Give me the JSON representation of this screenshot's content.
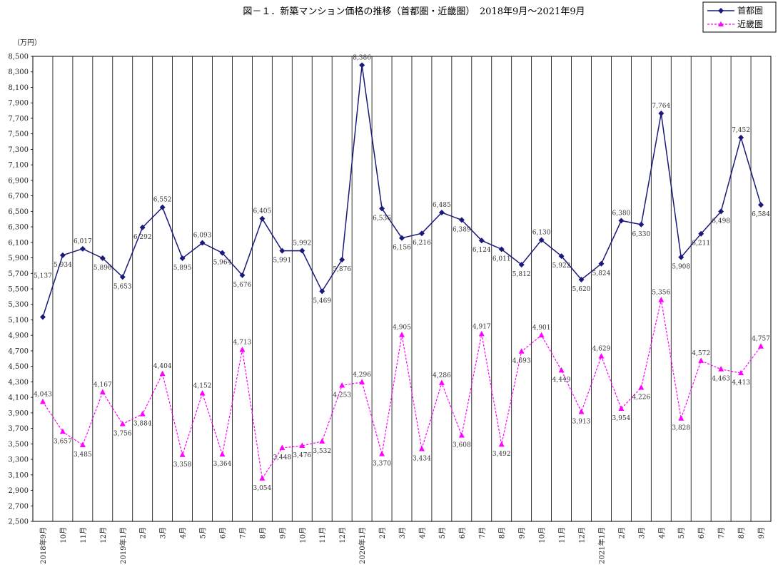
{
  "chart_data": {
    "type": "line",
    "title": "図－１．新築マンション価格の推移（首都圏・近畿圏）　2018年9月～2021年9月",
    "ylabel": "（万円）",
    "xlabel": "",
    "ylim": [
      2500,
      8500
    ],
    "yticks": [
      "2,500",
      "2,700",
      "2,900",
      "3,100",
      "3,300",
      "3,500",
      "3,700",
      "3,900",
      "4,100",
      "4,300",
      "4,500",
      "4,700",
      "4,900",
      "5,100",
      "5,300",
      "5,500",
      "5,700",
      "5,900",
      "6,100",
      "6,300",
      "6,500",
      "6,700",
      "6,900",
      "7,100",
      "7,300",
      "7,500",
      "7,700",
      "7,900",
      "8,100",
      "8,300",
      "8,500"
    ],
    "categories": [
      "2018年9月",
      "10月",
      "11月",
      "12月",
      "2019年1月",
      "2月",
      "3月",
      "4月",
      "5月",
      "6月",
      "7月",
      "8月",
      "9月",
      "10月",
      "11月",
      "12月",
      "2020年1月",
      "2月",
      "3月",
      "4月",
      "5月",
      "6月",
      "7月",
      "8月",
      "9月",
      "10月",
      "11月",
      "12月",
      "2021年1月",
      "2月",
      "3月",
      "4月",
      "5月",
      "6月",
      "7月",
      "8月",
      "9月"
    ],
    "series": [
      {
        "name": "首都圏",
        "color": "#1a1a7a",
        "marker": "diamond",
        "values": [
          5137,
          5934,
          6017,
          5896,
          5653,
          6292,
          6552,
          5895,
          6093,
          5964,
          5676,
          6405,
          5991,
          5992,
          5469,
          5876,
          8386,
          6536,
          6156,
          6216,
          6485,
          6389,
          6124,
          6011,
          5812,
          6130,
          5922,
          5620,
          5824,
          6380,
          6330,
          7764,
          5908,
          6211,
          6498,
          7452,
          6584
        ],
        "labels": [
          "5,137",
          "5,934",
          "6,017",
          "5,896",
          "5,653",
          "6,292",
          "6,552",
          "5,895",
          "6,093",
          "5,964",
          "5,676",
          "6,405",
          "5,991",
          "5,992",
          "5,469",
          "5,876",
          "8,386",
          "6,536",
          "6,156",
          "6,216",
          "6,485",
          "6,389",
          "6,124",
          "6,011",
          "5,812",
          "6,130",
          "5,922",
          "5,620",
          "5,824",
          "6,380",
          "6,330",
          "7,764",
          "5,908",
          "6,211",
          "6,498",
          "7,452",
          "6,584"
        ]
      },
      {
        "name": "近畿圏",
        "color": "#ff00ff",
        "marker": "triangle",
        "dashed": true,
        "values": [
          4043,
          3657,
          3485,
          4167,
          3756,
          3884,
          4404,
          3358,
          4152,
          3364,
          4713,
          3054,
          3448,
          3476,
          3532,
          4253,
          4296,
          3370,
          4905,
          3434,
          4286,
          3608,
          4917,
          3492,
          4693,
          4901,
          4449,
          3913,
          4629,
          3954,
          4226,
          5356,
          3828,
          4572,
          4463,
          4413,
          4757
        ],
        "labels": [
          "4,043",
          "3,657",
          "3,485",
          "4,167",
          "3,756",
          "3,884",
          "4,404",
          "3,358",
          "4,152",
          "3,364",
          "4,713",
          "3,054",
          "3,448",
          "3,476",
          "3,532",
          "4,253",
          "4,296",
          "3,370",
          "4,905",
          "3,434",
          "4,286",
          "3,608",
          "4,917",
          "3,492",
          "4,693",
          "4,901",
          "4,449",
          "3,913",
          "4,629",
          "3,954",
          "4,226",
          "5,356",
          "3,828",
          "4,572",
          "4,463",
          "4,413",
          "4,757"
        ]
      }
    ],
    "grid": "vertical",
    "legend": "top-right"
  }
}
